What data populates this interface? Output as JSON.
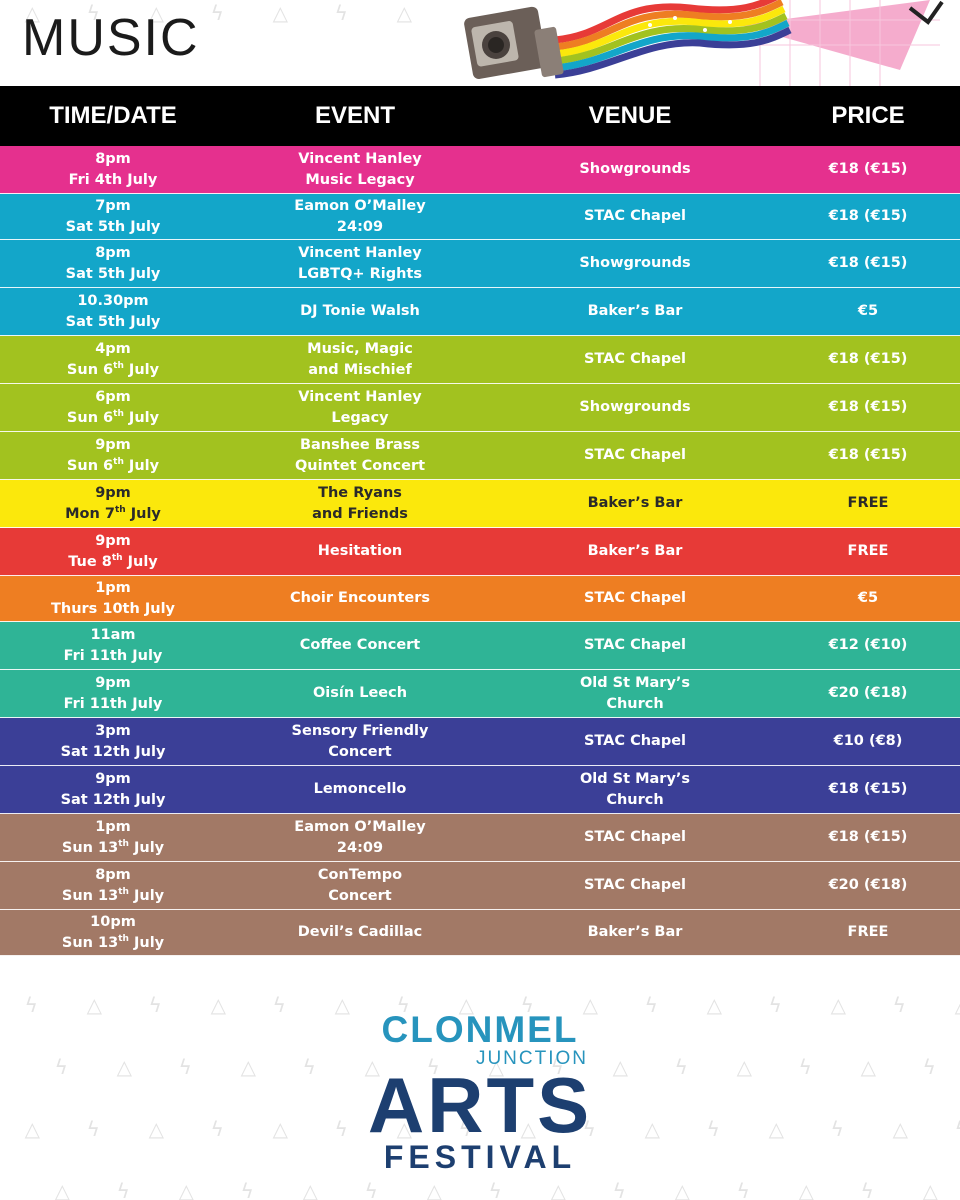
{
  "page": {
    "title": "MUSIC"
  },
  "table": {
    "headers": {
      "time": "TIME/DATE",
      "event": "EVENT",
      "venue": "VENUE",
      "price": "PRICE"
    },
    "rows": [
      {
        "color": "#e5308e",
        "dark": false,
        "time": "8pm",
        "day": "Fri 4th July",
        "sup": "",
        "month": "",
        "event": [
          "Vincent Hanley",
          "Music Legacy"
        ],
        "venue": [
          "Showgrounds"
        ],
        "price": "€18 (€15)"
      },
      {
        "color": "#13a6c9",
        "dark": false,
        "time": "7pm",
        "day": "Sat 5th July",
        "sup": "",
        "month": "",
        "event": [
          "Eamon O’Malley",
          "24:09"
        ],
        "venue": [
          "STAC Chapel"
        ],
        "price": "€18 (€15)"
      },
      {
        "color": "#13a6c9",
        "dark": false,
        "time": "8pm",
        "day": "Sat 5th July",
        "sup": "",
        "month": "",
        "event": [
          "Vincent Hanley",
          "LGBTQ+ Rights"
        ],
        "venue": [
          "Showgrounds"
        ],
        "price": "€18 (€15)"
      },
      {
        "color": "#13a6c9",
        "dark": false,
        "time": "10.30pm",
        "day": "Sat 5th July",
        "sup": "",
        "month": "",
        "event": [
          "DJ Tonie Walsh"
        ],
        "venue": [
          "Baker’s Bar"
        ],
        "price": "€5"
      },
      {
        "color": "#a2c21f",
        "dark": false,
        "time": "4pm",
        "day": "Sun 6",
        "sup": "th",
        "month": " July",
        "event": [
          "Music, Magic",
          "and Mischief"
        ],
        "venue": [
          "STAC Chapel"
        ],
        "price": "€18 (€15)"
      },
      {
        "color": "#a2c21f",
        "dark": false,
        "time": "6pm",
        "day": "Sun 6",
        "sup": "th",
        "month": " July",
        "event": [
          "Vincent Hanley",
          "Legacy"
        ],
        "venue": [
          "Showgrounds"
        ],
        "price": "€18 (€15)"
      },
      {
        "color": "#a2c21f",
        "dark": false,
        "time": "9pm",
        "day": "Sun 6",
        "sup": "th",
        "month": " July",
        "event": [
          "Banshee Brass",
          "Quintet Concert"
        ],
        "venue": [
          "STAC Chapel"
        ],
        "price": "€18 (€15)"
      },
      {
        "color": "#fbe80c",
        "dark": true,
        "time": "9pm",
        "day": "Mon 7",
        "sup": "th",
        "month": " July",
        "event": [
          "The Ryans",
          "and Friends"
        ],
        "venue": [
          "Baker’s Bar"
        ],
        "price": "FREE"
      },
      {
        "color": "#e73a37",
        "dark": false,
        "time": "9pm",
        "day": "Tue 8",
        "sup": "th",
        "month": " July",
        "event": [
          "Hesitation"
        ],
        "venue": [
          "Baker’s Bar"
        ],
        "price": "FREE"
      },
      {
        "color": "#ee7e22",
        "dark": false,
        "time": "1pm",
        "day": "Thurs 10th July",
        "sup": "",
        "month": "",
        "event": [
          "Choir Encounters"
        ],
        "venue": [
          "STAC Chapel"
        ],
        "price": "€5"
      },
      {
        "color": "#2fb496",
        "dark": false,
        "time": "11am",
        "day": "Fri 11th July",
        "sup": "",
        "month": "",
        "event": [
          "Coffee Concert"
        ],
        "venue": [
          "STAC Chapel"
        ],
        "price": "€12 (€10)"
      },
      {
        "color": "#2fb496",
        "dark": false,
        "time": "9pm",
        "day": "Fri 11th July",
        "sup": "",
        "month": "",
        "event": [
          "Oisín Leech"
        ],
        "venue": [
          "Old St Mary’s",
          "Church"
        ],
        "price": "€20 (€18)"
      },
      {
        "color": "#3b3f97",
        "dark": false,
        "time": "3pm",
        "day": "Sat 12th July",
        "sup": "",
        "month": "",
        "event": [
          "Sensory Friendly",
          "Concert"
        ],
        "venue": [
          "STAC Chapel"
        ],
        "price": "€10 (€8)"
      },
      {
        "color": "#3b3f97",
        "dark": false,
        "time": "9pm",
        "day": "Sat 12th July",
        "sup": "",
        "month": "",
        "event": [
          "Lemoncello"
        ],
        "venue": [
          "Old St Mary’s",
          "Church"
        ],
        "price": "€18 (€15)"
      },
      {
        "color": "#a27966",
        "dark": false,
        "time": "1pm",
        "day": "Sun 13",
        "sup": "th",
        "month": " July",
        "event": [
          "Eamon O’Malley",
          "24:09"
        ],
        "venue": [
          "STAC Chapel"
        ],
        "price": "€18 (€15)"
      },
      {
        "color": "#a27966",
        "dark": false,
        "time": "8pm",
        "day": "Sun 13",
        "sup": "th",
        "month": " July",
        "event": [
          "ConTempo",
          "Concert"
        ],
        "venue": [
          "STAC Chapel"
        ],
        "price": "€20 (€18)"
      },
      {
        "color": "#a27966",
        "dark": false,
        "time": "10pm",
        "day": "Sun 13",
        "sup": "th",
        "month": " July",
        "event": [
          "Devil’s Cadillac"
        ],
        "venue": [
          "Baker’s Bar"
        ],
        "price": "FREE"
      }
    ]
  },
  "logo": {
    "line1": "CLONMEL",
    "line2": "JUNCTION",
    "line3": "ARTS",
    "line4": "FESTIVAL"
  },
  "decor": {
    "icon": "camera-rainbow-icon"
  }
}
